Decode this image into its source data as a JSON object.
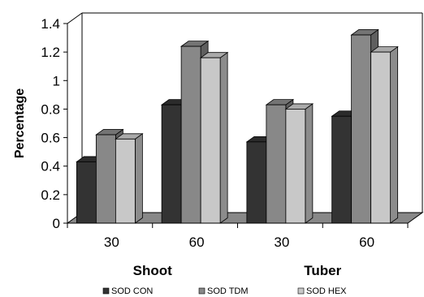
{
  "chart_data": {
    "type": "bar",
    "style": "3d-clustered",
    "ylabel": "Percentage",
    "ylim": [
      0,
      1.4
    ],
    "yticks": [
      "0",
      "0.2",
      "0.4",
      "0.6",
      "0.8",
      "1",
      "1.2",
      "1.4"
    ],
    "categories": [
      "30",
      "60",
      "30",
      "60"
    ],
    "groups": [
      {
        "label": "Shoot",
        "categories": [
          "30",
          "60"
        ]
      },
      {
        "label": "Tuber",
        "categories": [
          "30",
          "60"
        ]
      }
    ],
    "series": [
      {
        "name": "SOD CON",
        "color": "#333333",
        "values": [
          0.43,
          0.83,
          0.57,
          0.75
        ]
      },
      {
        "name": "SOD TDM",
        "color": "#888888",
        "values": [
          0.62,
          1.24,
          0.83,
          1.32
        ]
      },
      {
        "name": "SOD HEX",
        "color": "#c8c8c8",
        "values": [
          0.59,
          1.16,
          0.8,
          1.2
        ]
      }
    ],
    "grid": false,
    "legend_position": "bottom"
  }
}
